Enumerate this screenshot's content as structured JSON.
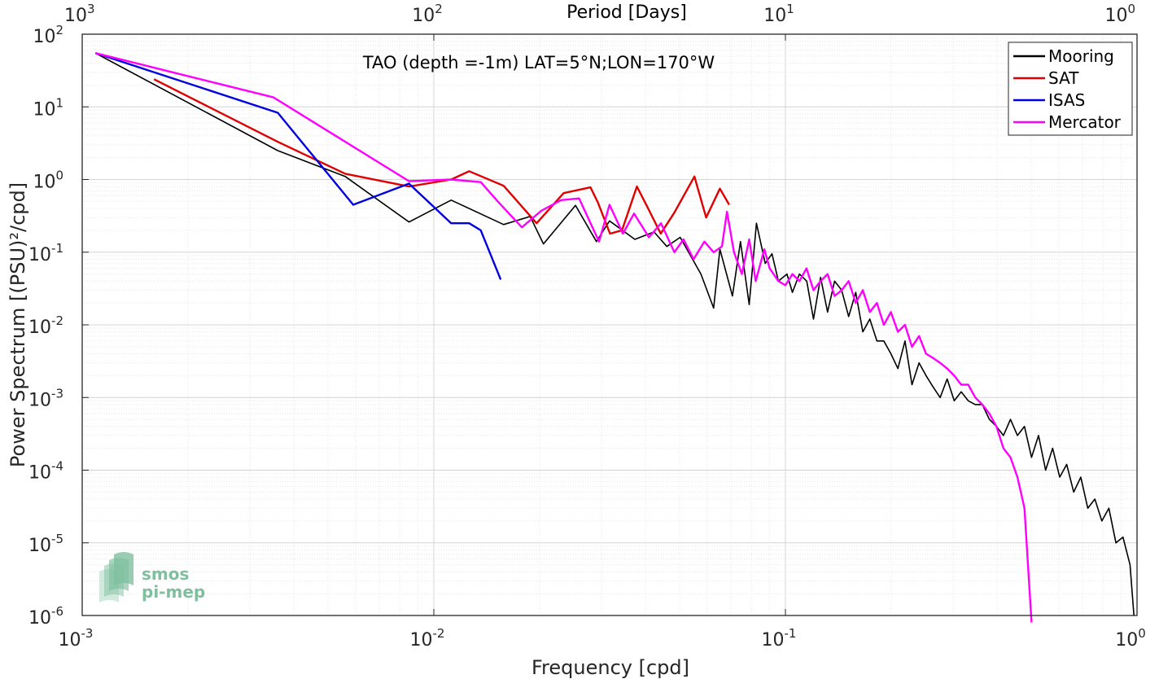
{
  "chart_data": {
    "type": "line",
    "title": "TAO (depth =-1m) LAT=5°N;LON=170°W",
    "xlabel": "Frequency [cpd]",
    "ylabel": "Power Spectrum [(PSU)²/cpd]",
    "top_xlabel": "Period [Days]",
    "xscale": "log",
    "yscale": "log",
    "xlim": [
      0.001,
      1
    ],
    "ylim": [
      1e-06,
      100
    ],
    "grid": true,
    "legend_position": "top-right",
    "x_ticks": [
      {
        "base": "10",
        "exp": "-3"
      },
      {
        "base": "10",
        "exp": "-2"
      },
      {
        "base": "10",
        "exp": "-1"
      },
      {
        "base": "10",
        "exp": "0"
      }
    ],
    "y_ticks": [
      {
        "base": "10",
        "exp": "2"
      },
      {
        "base": "10",
        "exp": "1"
      },
      {
        "base": "10",
        "exp": "0"
      },
      {
        "base": "10",
        "exp": "-1"
      },
      {
        "base": "10",
        "exp": "-2"
      },
      {
        "base": "10",
        "exp": "-3"
      },
      {
        "base": "10",
        "exp": "-4"
      },
      {
        "base": "10",
        "exp": "-5"
      },
      {
        "base": "10",
        "exp": "-6"
      }
    ],
    "top_ticks": [
      {
        "base": "10",
        "exp": "3"
      },
      {
        "base": "10",
        "exp": "2"
      },
      {
        "base": "10",
        "exp": "1"
      },
      {
        "base": "10",
        "exp": "0"
      }
    ],
    "series": [
      {
        "name": "Mooring",
        "color": "#000000",
        "x": [
          0.00109,
          0.0036,
          0.0056,
          0.0085,
          0.0112,
          0.0158,
          0.0188,
          0.0205,
          0.0253,
          0.029,
          0.0316,
          0.0373,
          0.0423,
          0.046,
          0.0502,
          0.0575,
          0.0625,
          0.0651,
          0.0707,
          0.0745,
          0.0789,
          0.0827,
          0.0876,
          0.0916,
          0.0955,
          0.101,
          0.1047,
          0.1096,
          0.115,
          0.1202,
          0.1259,
          0.1318,
          0.138,
          0.1445,
          0.1513,
          0.1585,
          0.166,
          0.1738,
          0.182,
          0.1905,
          0.1995,
          0.2089,
          0.2188,
          0.2291,
          0.2399,
          0.2512,
          0.263,
          0.2754,
          0.2884,
          0.302,
          0.3162,
          0.3311,
          0.3467,
          0.3631,
          0.3802,
          0.3981,
          0.4169,
          0.4365,
          0.4571,
          0.4786,
          0.5012,
          0.5248,
          0.5495,
          0.5754,
          0.6026,
          0.631,
          0.6607,
          0.6918,
          0.7244,
          0.7586,
          0.7943,
          0.8318,
          0.871,
          0.912,
          0.955,
          0.98
        ],
        "y": [
          55,
          2.5,
          1.1,
          0.26,
          0.52,
          0.24,
          0.31,
          0.13,
          0.44,
          0.14,
          0.27,
          0.15,
          0.19,
          0.12,
          0.16,
          0.05,
          0.017,
          0.11,
          0.025,
          0.14,
          0.019,
          0.25,
          0.07,
          0.095,
          0.04,
          0.05,
          0.028,
          0.05,
          0.04,
          0.012,
          0.045,
          0.015,
          0.04,
          0.03,
          0.013,
          0.028,
          0.008,
          0.012,
          0.006,
          0.006,
          0.004,
          0.0025,
          0.006,
          0.0015,
          0.003,
          0.002,
          0.0014,
          0.001,
          0.0018,
          0.0009,
          0.0012,
          0.0009,
          0.0008,
          0.0008,
          0.0005,
          0.0004,
          0.0003,
          0.0005,
          0.0003,
          0.0004,
          0.00015,
          0.0003,
          0.0001,
          0.0002,
          8e-05,
          0.00012,
          5e-05,
          8e-05,
          3e-05,
          4e-05,
          2e-05,
          3e-05,
          1e-05,
          1.2e-05,
          5e-06,
          1e-06
        ]
      },
      {
        "name": "SAT",
        "color": "#e00000",
        "x": [
          0.0016,
          0.0036,
          0.0056,
          0.0085,
          0.0112,
          0.0126,
          0.0158,
          0.0196,
          0.0234,
          0.0279,
          0.0293,
          0.0317,
          0.0343,
          0.0378,
          0.0407,
          0.0442,
          0.0483,
          0.0551,
          0.0595,
          0.0651,
          0.0692
        ],
        "y": [
          24,
          3.3,
          1.2,
          0.8,
          1.0,
          1.3,
          0.82,
          0.25,
          0.65,
          0.78,
          0.48,
          0.18,
          0.2,
          0.8,
          0.4,
          0.18,
          0.35,
          1.1,
          0.3,
          0.75,
          0.45
        ]
      },
      {
        "name": "ISAS",
        "color": "#0000e0",
        "x": [
          0.00109,
          0.0036,
          0.0059,
          0.0085,
          0.0112,
          0.0126,
          0.0136,
          0.0155
        ],
        "y": [
          55,
          8.3,
          0.45,
          0.88,
          0.25,
          0.25,
          0.2,
          0.042
        ]
      },
      {
        "name": "Mercator",
        "color": "#ff00ff",
        "x": [
          0.00109,
          0.0035,
          0.0085,
          0.0112,
          0.0136,
          0.0152,
          0.0178,
          0.0202,
          0.023,
          0.0259,
          0.0295,
          0.0316,
          0.0345,
          0.0371,
          0.0409,
          0.0443,
          0.0483,
          0.0513,
          0.0548,
          0.0588,
          0.0625,
          0.066,
          0.0682,
          0.0714,
          0.0752,
          0.0789,
          0.0823,
          0.0871,
          0.0902,
          0.0955,
          0.1,
          0.1047,
          0.1096,
          0.1148,
          0.1202,
          0.1259,
          0.1318,
          0.138,
          0.1445,
          0.1513,
          0.1585,
          0.166,
          0.1738,
          0.182,
          0.1905,
          0.1995,
          0.2089,
          0.2188,
          0.2291,
          0.2399,
          0.2512,
          0.263,
          0.2754,
          0.2884,
          0.302,
          0.3162,
          0.3311,
          0.3467,
          0.3631,
          0.3802,
          0.3981,
          0.4169,
          0.4365,
          0.4571,
          0.4786,
          0.5012
        ],
        "y": [
          55,
          13.5,
          0.95,
          1.0,
          0.92,
          0.5,
          0.22,
          0.37,
          0.52,
          0.55,
          0.14,
          0.45,
          0.18,
          0.34,
          0.16,
          0.25,
          0.1,
          0.15,
          0.08,
          0.14,
          0.1,
          0.12,
          0.36,
          0.1,
          0.05,
          0.15,
          0.04,
          0.11,
          0.06,
          0.04,
          0.035,
          0.05,
          0.04,
          0.06,
          0.03,
          0.04,
          0.05,
          0.025,
          0.03,
          0.04,
          0.02,
          0.03,
          0.015,
          0.02,
          0.01,
          0.015,
          0.008,
          0.01,
          0.005,
          0.007,
          0.004,
          0.0035,
          0.003,
          0.0025,
          0.002,
          0.0015,
          0.0015,
          0.001,
          0.0008,
          0.0006,
          0.0004,
          0.0002,
          0.00015,
          8e-05,
          3e-05,
          8e-07
        ]
      }
    ]
  },
  "logo": {
    "line1": "smos",
    "line2": "pi-mep",
    "color": "#7fbf9f"
  }
}
